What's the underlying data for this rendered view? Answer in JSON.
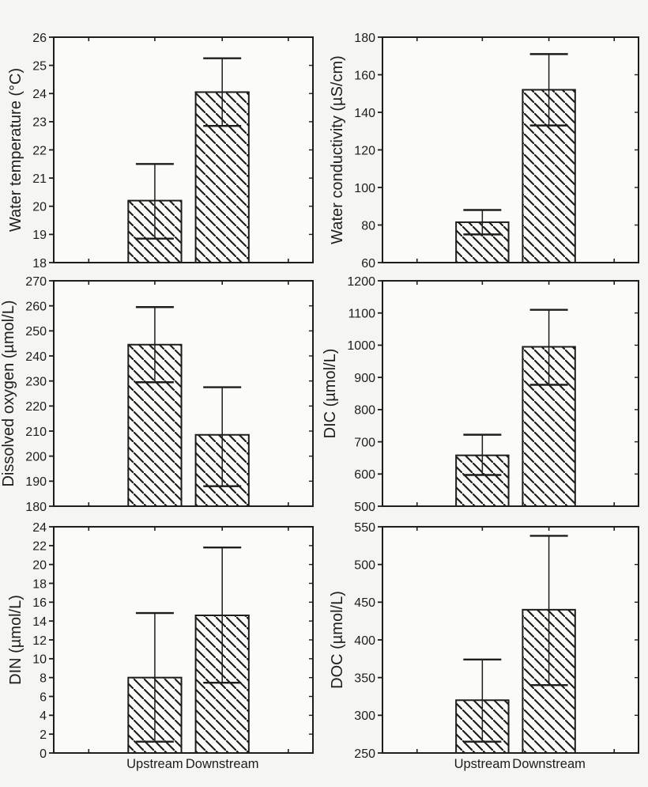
{
  "figure": {
    "background": "#f5f5f3",
    "ink": "#1d1d1d",
    "bar_fill": "#fbfbfa",
    "categories": [
      "Upstream",
      "Downstream"
    ]
  },
  "chart_data": [
    {
      "type": "bar",
      "panel": "water-temperature",
      "ylabel": "Water temperature (°C)",
      "ylim": [
        18,
        26
      ],
      "yticks": [
        18,
        19,
        20,
        21,
        22,
        23,
        24,
        25,
        26
      ],
      "categories": [
        "Upstream",
        "Downstream"
      ],
      "values": [
        20.2,
        24.05
      ],
      "error_low": [
        18.85,
        22.85
      ],
      "error_high": [
        21.5,
        25.25
      ],
      "show_x_tick_labels": false,
      "grid": false,
      "legend": "none"
    },
    {
      "type": "bar",
      "panel": "water-conductivity",
      "ylabel": "Water conductivity (µS/cm)",
      "ylim": [
        60,
        180
      ],
      "yticks": [
        60,
        80,
        100,
        120,
        140,
        160,
        180
      ],
      "categories": [
        "Upstream",
        "Downstream"
      ],
      "values": [
        81.5,
        152
      ],
      "error_low": [
        75,
        133
      ],
      "error_high": [
        88,
        171
      ],
      "show_x_tick_labels": false,
      "grid": false,
      "legend": "none"
    },
    {
      "type": "bar",
      "panel": "dissolved-oxygen",
      "ylabel": "Dissolved oxygen (µmol/L)",
      "ylim": [
        180,
        270
      ],
      "yticks": [
        180,
        190,
        200,
        210,
        220,
        230,
        240,
        250,
        260,
        270
      ],
      "categories": [
        "Upstream",
        "Downstream"
      ],
      "values": [
        244.5,
        208.5
      ],
      "error_low": [
        229.5,
        188
      ],
      "error_high": [
        259.5,
        227.5
      ],
      "show_x_tick_labels": false,
      "grid": false,
      "legend": "none"
    },
    {
      "type": "bar",
      "panel": "dic",
      "ylabel": "DIC (µmol/L)",
      "ylim": [
        500,
        1200
      ],
      "yticks": [
        500,
        600,
        700,
        800,
        900,
        1000,
        1100,
        1200
      ],
      "categories": [
        "Upstream",
        "Downstream"
      ],
      "values": [
        658,
        995
      ],
      "error_low": [
        597,
        877
      ],
      "error_high": [
        722,
        1110
      ],
      "show_x_tick_labels": false,
      "grid": false,
      "legend": "none"
    },
    {
      "type": "bar",
      "panel": "din",
      "ylabel": "DIN (µmol/L)",
      "ylim": [
        0,
        24
      ],
      "yticks": [
        0,
        2,
        4,
        6,
        8,
        10,
        12,
        14,
        16,
        18,
        20,
        22,
        24
      ],
      "categories": [
        "Upstream",
        "Downstream"
      ],
      "values": [
        8.0,
        14.6
      ],
      "error_low": [
        1.2,
        7.45
      ],
      "error_high": [
        14.85,
        21.8
      ],
      "show_x_tick_labels": true,
      "grid": false,
      "legend": "none"
    },
    {
      "type": "bar",
      "panel": "doc",
      "ylabel": "DOC (µmol/L)",
      "ylim": [
        250,
        550
      ],
      "yticks": [
        250,
        300,
        350,
        400,
        450,
        500,
        550
      ],
      "categories": [
        "Upstream",
        "Downstream"
      ],
      "values": [
        320,
        440
      ],
      "error_low": [
        265,
        340
      ],
      "error_high": [
        374,
        538
      ],
      "show_x_tick_labels": true,
      "grid": false,
      "legend": "none"
    }
  ]
}
